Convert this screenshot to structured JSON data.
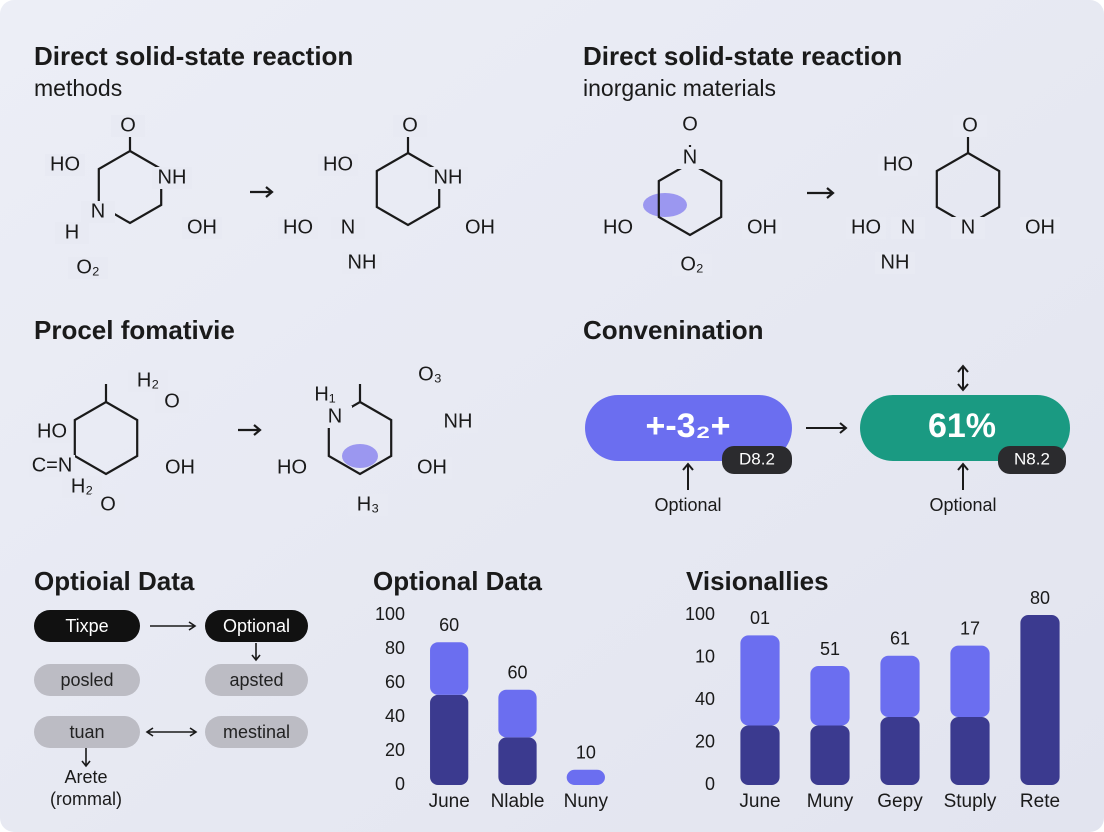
{
  "reactions": [
    {
      "title": "Direct solid-state reaction",
      "subtitle": "methods",
      "molecules": [
        [
          "O",
          "HO",
          "NH",
          "N",
          "H",
          "OH",
          "O₂"
        ],
        [
          "O",
          "HO",
          "NH",
          "HO",
          "N",
          "OH",
          "NH"
        ]
      ]
    },
    {
      "title": "Direct solid-state reaction",
      "subtitle": "inorganic materials",
      "molecules": [
        [
          "O",
          "N",
          "HO",
          "OH",
          "O₂"
        ],
        [
          "O",
          "HO",
          "HO",
          "N",
          "N",
          "OH",
          "NH"
        ]
      ]
    },
    {
      "title": "Procel fomativie",
      "molecules": [
        [
          "H₂",
          "O",
          "HO",
          "C=N",
          "OH",
          "H₂",
          "O"
        ],
        [
          "O₃",
          "H₁",
          "N",
          "NH",
          "HO",
          "OH",
          "H₃"
        ]
      ]
    }
  ],
  "conversion": {
    "title": "Convenination",
    "steps": [
      {
        "value": "+-3₂+",
        "badge": "D8.2",
        "label": "Optional"
      },
      {
        "value": "61%",
        "badge": "N8.2",
        "label": "Optional"
      }
    ]
  },
  "flow": {
    "title": "Optioial Data",
    "nodes": [
      "Tixpe",
      "Optional",
      "posled",
      "apsted",
      "tuan",
      "mestinal"
    ],
    "end": [
      "Arete",
      "(rommal)"
    ]
  },
  "chart_data": [
    {
      "type": "bar",
      "title": "Optional Data",
      "stacked": true,
      "categories": [
        "June",
        "Nlable",
        "Nuny"
      ],
      "series": [
        {
          "color": "#3b3a8f",
          "values": [
            53,
            28,
            0
          ]
        },
        {
          "color": "#6b6ef0",
          "values": [
            31,
            28,
            9
          ]
        }
      ],
      "annotations": [
        "60",
        "60",
        "10"
      ],
      "ylim": [
        0,
        100
      ],
      "yticks": [
        0,
        20,
        40,
        60,
        80,
        100
      ]
    },
    {
      "type": "bar",
      "title": "Visionallies",
      "stacked": true,
      "categories": [
        "June",
        "Muny",
        "Gepy",
        "Stuply",
        "Rete"
      ],
      "series": [
        {
          "color": "#3b3a8f",
          "values": [
            35,
            35,
            40,
            40,
            100
          ]
        },
        {
          "color": "#6b6ef0",
          "values": [
            53,
            35,
            36,
            42,
            0
          ]
        }
      ],
      "annotations": [
        "01",
        "51",
        "61",
        "17",
        "80"
      ],
      "ylim": [
        0,
        100
      ],
      "yticks": [
        0,
        {
          "value": 25,
          "label": "20"
        },
        {
          "value": 50,
          "label": "40"
        },
        {
          "value": 75,
          "label": "10"
        },
        100
      ]
    }
  ]
}
